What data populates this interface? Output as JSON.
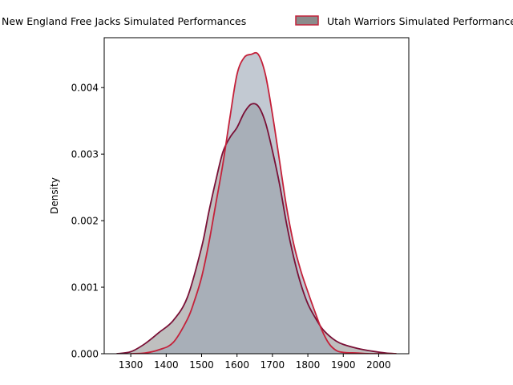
{
  "chart_data": {
    "type": "area",
    "title": "",
    "xlabel": "",
    "ylabel": "Density",
    "xlim": [
      1225,
      2085
    ],
    "ylim": [
      0,
      0.00475
    ],
    "x_ticks": [
      1300,
      1400,
      1500,
      1600,
      1700,
      1800,
      1900,
      2000
    ],
    "x_tick_labels": [
      "1300",
      "1400",
      "1500",
      "1600",
      "1700",
      "1800",
      "1900",
      "2000"
    ],
    "y_ticks": [
      0,
      0.001,
      0.002,
      0.003,
      0.004
    ],
    "y_tick_labels": [
      "0.000",
      "0.001",
      "0.002",
      "0.003",
      "0.004"
    ],
    "grid": false,
    "legend_position": "top-center",
    "colors": {
      "free_jacks_fill": "#8b8b8b",
      "free_jacks_line": "#7a1036",
      "warriors_fill": "#9aa5b4",
      "warriors_line": "#c4213a",
      "overlap_fill": "#8f969d"
    },
    "series": [
      {
        "name": "New England Free Jacks Simulated Performances",
        "x": [
          1260,
          1300,
          1340,
          1380,
          1420,
          1460,
          1500,
          1520,
          1540,
          1560,
          1580,
          1600,
          1620,
          1640,
          1660,
          1680,
          1700,
          1720,
          1740,
          1760,
          1780,
          1800,
          1820,
          1840,
          1860,
          1880,
          1900,
          1940,
          1980,
          2020,
          2050
        ],
        "values": [
          0.0,
          3e-05,
          0.00015,
          0.00032,
          0.0005,
          0.00085,
          0.0016,
          0.00212,
          0.0026,
          0.00303,
          0.00325,
          0.0034,
          0.00362,
          0.00375,
          0.00372,
          0.00348,
          0.00305,
          0.00255,
          0.00195,
          0.00145,
          0.00105,
          0.00075,
          0.00055,
          0.00038,
          0.00027,
          0.00019,
          0.00014,
          8e-05,
          4e-05,
          1e-05,
          0.0
        ]
      },
      {
        "name": "Utah Warriors Simulated Performances",
        "x": [
          1300,
          1340,
          1380,
          1420,
          1460,
          1480,
          1500,
          1520,
          1540,
          1560,
          1580,
          1600,
          1620,
          1640,
          1660,
          1680,
          1700,
          1720,
          1740,
          1760,
          1780,
          1800,
          1820,
          1840,
          1860,
          1880,
          1900,
          1940,
          1980,
          2020,
          2050
        ],
        "values": [
          0.0,
          1e-05,
          6e-05,
          0.00017,
          0.00052,
          0.0008,
          0.00115,
          0.00165,
          0.00225,
          0.00285,
          0.00355,
          0.0042,
          0.00445,
          0.0045,
          0.0045,
          0.0042,
          0.0036,
          0.0029,
          0.0022,
          0.00165,
          0.00125,
          0.00093,
          0.00063,
          0.00035,
          0.00015,
          5e-05,
          2e-05,
          1e-05,
          0.0,
          0.0,
          0.0
        ]
      }
    ]
  },
  "legend": {
    "free_jacks_label": "New England Free Jacks Simulated Performances",
    "warriors_label": "Utah Warriors Simulated Performances"
  }
}
